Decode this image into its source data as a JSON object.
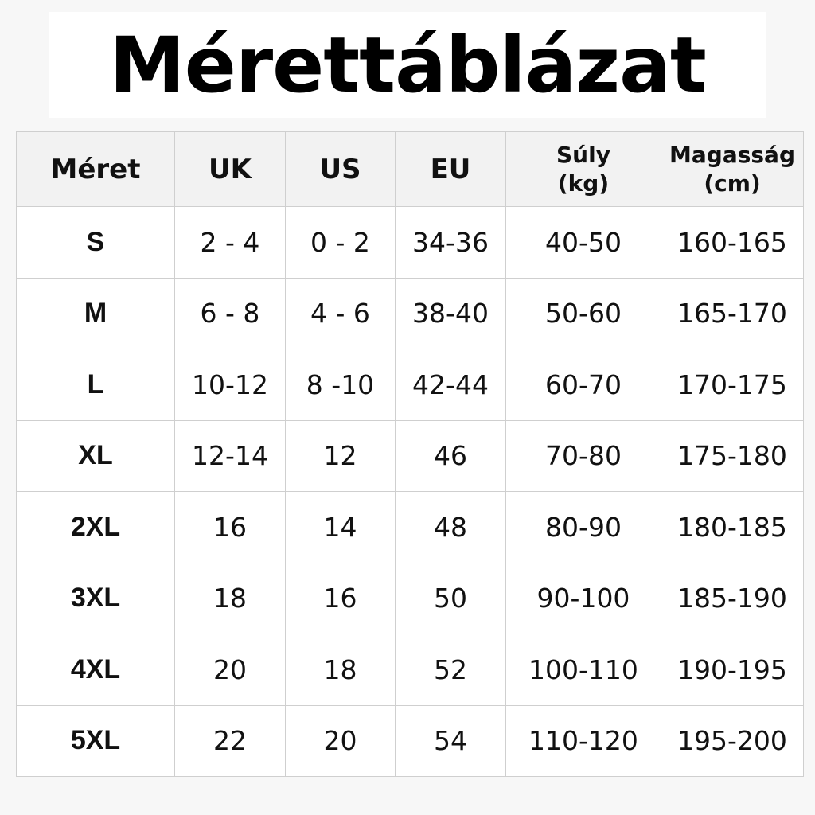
{
  "title": "Mérettáblázat",
  "table": {
    "headers": [
      "Méret",
      "UK",
      "US",
      "EU",
      "Súly\n(kg)",
      "Magasság\n(cm)"
    ],
    "header_lines": [
      [
        "Méret"
      ],
      [
        "UK"
      ],
      [
        "US"
      ],
      [
        "EU"
      ],
      [
        "Súly",
        "(kg)"
      ],
      [
        "Magasság",
        "(cm)"
      ]
    ],
    "rows": [
      [
        "S",
        "2 - 4",
        "0 - 2",
        "34-36",
        "40-50",
        "160-165"
      ],
      [
        "M",
        "6 - 8",
        "4 - 6",
        "38-40",
        "50-60",
        "165-170"
      ],
      [
        "L",
        "10-12",
        "8 -10",
        "42-44",
        "60-70",
        "170-175"
      ],
      [
        "XL",
        "12-14",
        "12",
        "46",
        "70-80",
        "175-180"
      ],
      [
        "2XL",
        "16",
        "14",
        "48",
        "80-90",
        "180-185"
      ],
      [
        "3XL",
        "18",
        "16",
        "50",
        "90-100",
        "185-190"
      ],
      [
        "4XL",
        "20",
        "18",
        "52",
        "100-110",
        "190-195"
      ],
      [
        "5XL",
        "22",
        "20",
        "54",
        "110-120",
        "195-200"
      ]
    ]
  },
  "colors": {
    "header_bg": "#f2f2f2",
    "border": "#cfcfcf",
    "text": "#111111"
  }
}
